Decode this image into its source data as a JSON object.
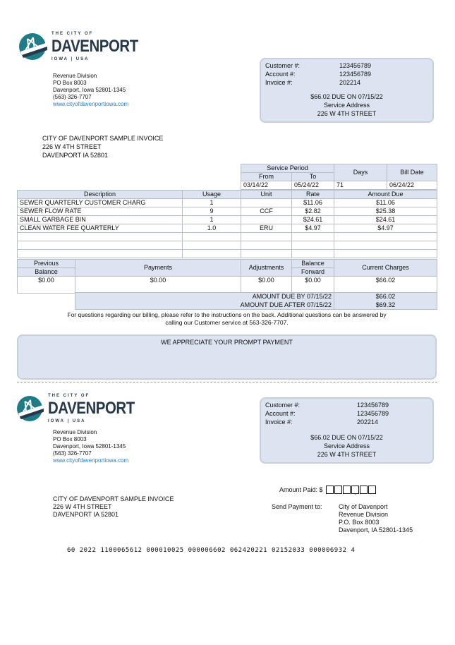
{
  "logo": {
    "top": "THE CITY OF",
    "name": "DAVENPORT",
    "bottom": "IOWA | USA"
  },
  "sender": {
    "line1": "Revenue Division",
    "line2": "PO Box 8003",
    "line3": "Davenport, Iowa 52801-1345",
    "phone": "(563) 326-7707",
    "website": "www.cityofdavenportiowa.com"
  },
  "summary": {
    "customer_label": "Customer #:",
    "customer": "123456789",
    "account_label": "Account #:",
    "account": "123456789",
    "invoice_label": "Invoice #:",
    "invoice": "202214",
    "due_line": "$66.02 DUE ON 07/15/22",
    "service_label": "Service Address",
    "service_address": "226 W 4TH STREET"
  },
  "recipient": {
    "line1": "CITY OF DAVENPORT SAMPLE INVOICE",
    "line2": "226 W 4TH STREET",
    "line3": "DAVENPORT IA 52801"
  },
  "period": {
    "service_period": "Service Period",
    "from_label": "From",
    "to_label": "To",
    "days_label": "Days",
    "bill_date_label": "Bill Date",
    "from": "03/14/22",
    "to": "05/24/22",
    "days": "71",
    "bill_date": "06/24/22"
  },
  "items": {
    "headers": [
      "Description",
      "Usage",
      "Unit",
      "Rate",
      "Amount Due"
    ],
    "rows": [
      [
        "SEWER QUARTERLY CUSTOMER CHARG",
        "1",
        "",
        "$11.06",
        "$11.06"
      ],
      [
        "SEWER FLOW RATE",
        "9",
        "CCF",
        "$2.82",
        "$25.38"
      ],
      [
        "SMALL GARBAGE BIN",
        "1",
        "",
        "$24.61",
        "$24.61"
      ],
      [
        "CLEAN WATER FEE QUARTERLY",
        "1.0",
        "ERU",
        "$4.97",
        "$4.97"
      ]
    ]
  },
  "balance": {
    "prev1": "Previous",
    "prev2": "Balance",
    "payments": "Payments",
    "adjustments": "Adjustments",
    "fwd1": "Balance",
    "fwd2": "Forward",
    "current": "Current Charges",
    "prev_val": "$0.00",
    "payments_val": "$0.00",
    "adjustments_val": "$0.00",
    "fwd_val": "$0.00",
    "current_val": "$66.02"
  },
  "totals": {
    "due_by_label": "AMOUNT DUE BY 07/15/22",
    "due_by": "$66.02",
    "due_after_label": "AMOUNT DUE AFTER 07/15/22",
    "due_after": "$69.32"
  },
  "note": {
    "line1": "For questions regarding our billing, please refer to the instructions on the back. Additional questions can be answered by",
    "line2": "calling our Customer service at 563-326-7707."
  },
  "message": "WE APPRECIATE YOUR PROMPT PAYMENT",
  "stub": {
    "amount_paid_label": "Amount Paid: $",
    "send_label": "Send Payment to:",
    "pay1": "City of Davenport",
    "pay2": "Revenue Division",
    "pay3": "P.O. Box 8003",
    "pay4": "Davenport, IA 52801-1345",
    "micr": "60 2022 1100065612 000010025 000006602 062420221 02152033 000006932 4"
  },
  "colors": {
    "accent": "#dbe4f0",
    "logo_teal": "#1f7c87",
    "logo_navy": "#27384a",
    "link": "#2a7fc9"
  }
}
